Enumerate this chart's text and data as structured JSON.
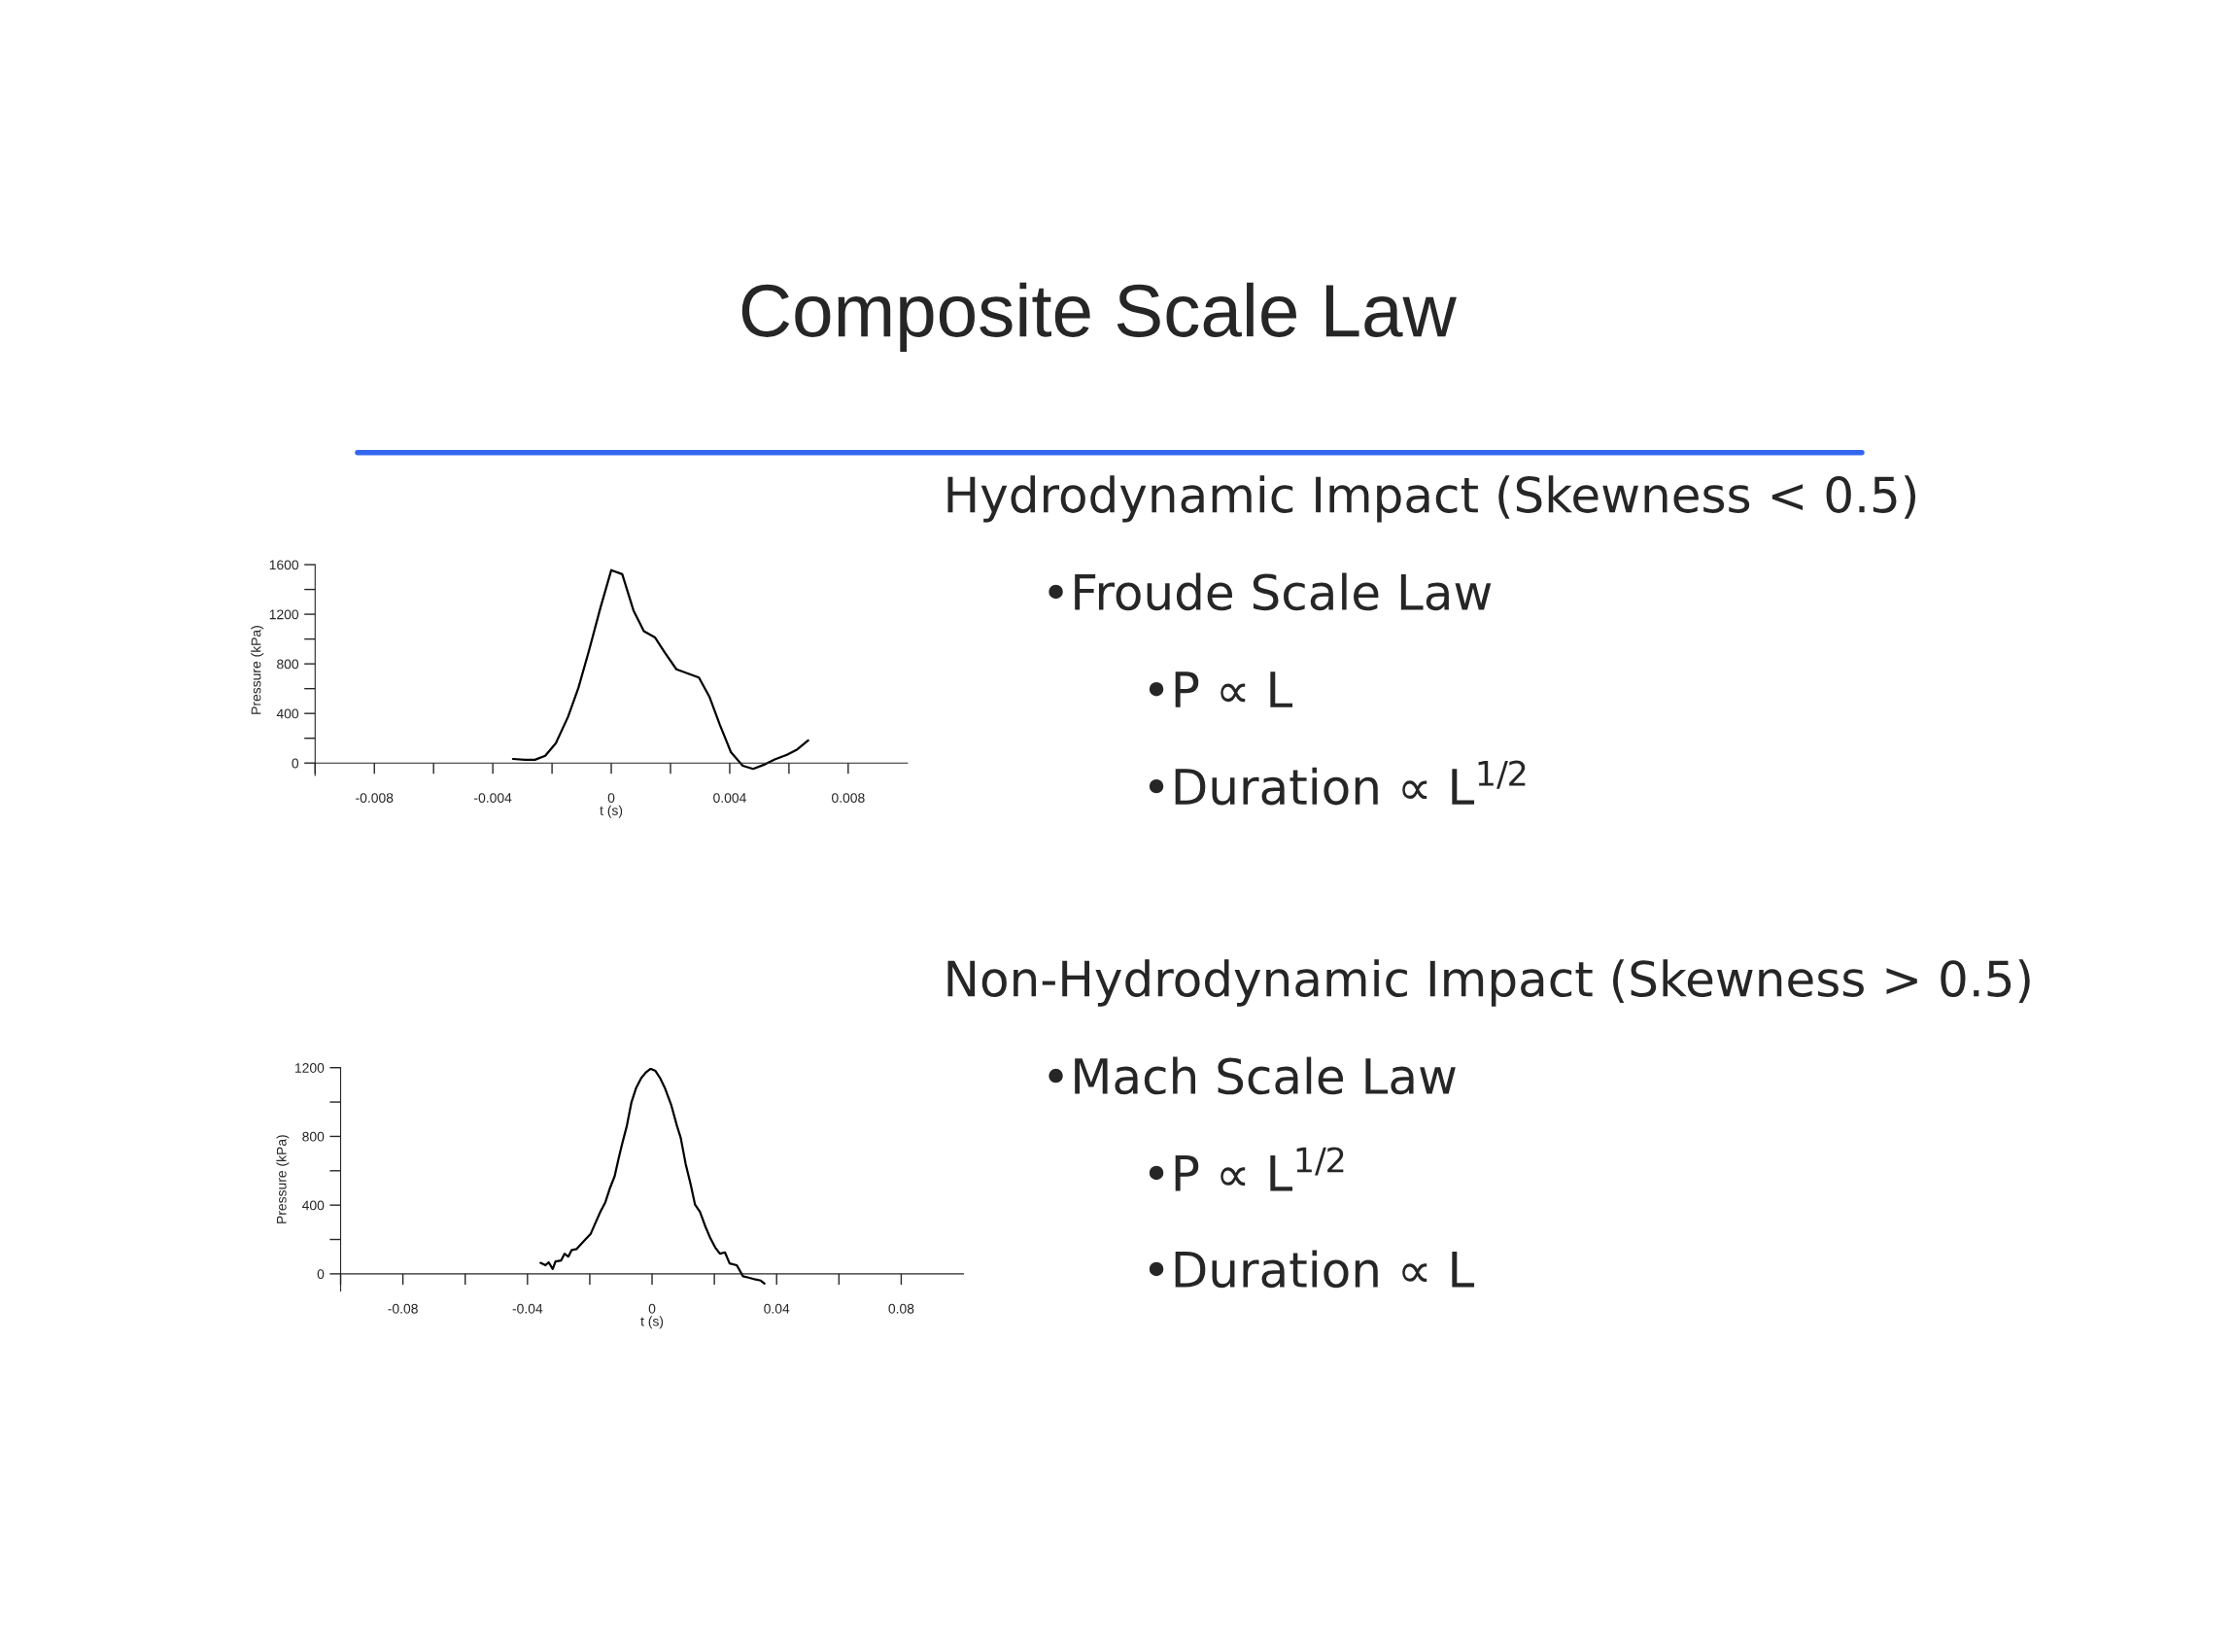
{
  "chart_data": [
    {
      "type": "line",
      "xlabel": "t (s)",
      "ylabel": "Pressure (kPa)",
      "xlim": [
        -0.01,
        0.01
      ],
      "ylim": [
        -100,
        1600
      ],
      "xticks": [
        {
          "value": -0.01,
          "label": null
        },
        -0.008,
        {
          "value": -0.006,
          "label": null
        },
        -0.004,
        {
          "value": -0.002,
          "label": null
        },
        0,
        {
          "value": 0.002,
          "label": null
        },
        0.004,
        {
          "value": 0.006,
          "label": null
        },
        0.008
      ],
      "yticks": [
        0,
        {
          "value": 200,
          "label": null
        },
        400,
        {
          "value": 600,
          "label": null
        },
        800,
        {
          "value": 1000,
          "label": null
        },
        1200,
        {
          "value": 1400,
          "label": null
        },
        1600
      ],
      "grid": false,
      "legend": false,
      "line_style": "solid",
      "marker": "none",
      "series": [
        {
          "color": "#000000",
          "x": [
            -0.00332,
            -0.00291,
            -0.00258,
            -0.00223,
            -0.00187,
            -0.00146,
            -0.00111,
            -0.00075,
            -0.00037,
            0,
            0.00037,
            0.00075,
            0.0011,
            0.00148,
            0.00181,
            0.0022,
            0.00258,
            0.00296,
            0.00331,
            0.00367,
            0.00404,
            0.00444,
            0.00479,
            0.00514,
            0.00552,
            0.00593,
            0.00628,
            0.00665
          ],
          "values": [
            33,
            26,
            26,
            58,
            161,
            373,
            606,
            909,
            1249,
            1556,
            1523,
            1231,
            1063,
            1012,
            891,
            756,
            723,
            690,
            537,
            307,
            88,
            -22,
            -47,
            -15,
            29,
            66,
            110,
            183
          ]
        }
      ]
    },
    {
      "type": "line",
      "xlabel": "t (s)",
      "ylabel": "Pressure (kPa)",
      "xlim": [
        -0.1,
        0.1
      ],
      "ylim": [
        -100,
        1200
      ],
      "xticks": [
        {
          "value": -0.1,
          "label": null
        },
        -0.08,
        {
          "value": -0.06,
          "label": null
        },
        -0.04,
        {
          "value": -0.02,
          "label": null
        },
        0,
        {
          "value": 0.02,
          "label": null
        },
        0.04,
        {
          "value": 0.06,
          "label": null
        },
        0.08
      ],
      "yticks": [
        0,
        {
          "value": 200,
          "label": null
        },
        400,
        {
          "value": 600,
          "label": null
        },
        800,
        {
          "value": 1000,
          "label": null
        },
        1200
      ],
      "grid": false,
      "legend": false,
      "line_style": "solid",
      "marker": "none",
      "series": [
        {
          "color": "#000000",
          "x": [
            -0.0358,
            -0.0342,
            -0.0332,
            -0.0319,
            -0.031,
            -0.0292,
            -0.0281,
            -0.0269,
            -0.0258,
            -0.0243,
            -0.022,
            -0.0197,
            -0.0181,
            -0.0166,
            -0.015,
            -0.0135,
            -0.012,
            -0.0108,
            -0.0097,
            -0.0081,
            -0.0066,
            -0.0051,
            -0.0035,
            -0.002,
            -0.0005,
            0.0011,
            0.0026,
            0.0041,
            0.0061,
            0.008,
            0.0092,
            0.0108,
            0.0123,
            0.0138,
            0.0154,
            0.0172,
            0.0187,
            0.0203,
            0.0218,
            0.0234,
            0.0249,
            0.0272,
            0.0292,
            0.031,
            0.0333,
            0.0349,
            0.0361
          ],
          "values": [
            64,
            50,
            67,
            28,
            72,
            78,
            117,
            100,
            139,
            144,
            189,
            233,
            300,
            361,
            417,
            500,
            569,
            667,
            750,
            861,
            1000,
            1083,
            1139,
            1172,
            1194,
            1181,
            1139,
            1083,
            986,
            861,
            792,
            639,
            528,
            403,
            361,
            272,
            208,
            153,
            117,
            125,
            61,
            50,
            -14,
            -22,
            -33,
            -39,
            -56
          ]
        }
      ]
    },
    {
      "type": "other",
      "title": "Composite Scale Law",
      "annotations": [
        "Hydrodynamic Impact (Skewness < 0.5)",
        "•Froude Scale Law",
        "•P ∝ L",
        "•Duration ∝ L$^{1/2}$",
        "Non-Hydrodynamic Impact (Skewness > 0.5)",
        "•Mach Scale Law",
        "•P ∝ L$^{1/2}$",
        "•Duration ∝ L"
      ]
    }
  ]
}
